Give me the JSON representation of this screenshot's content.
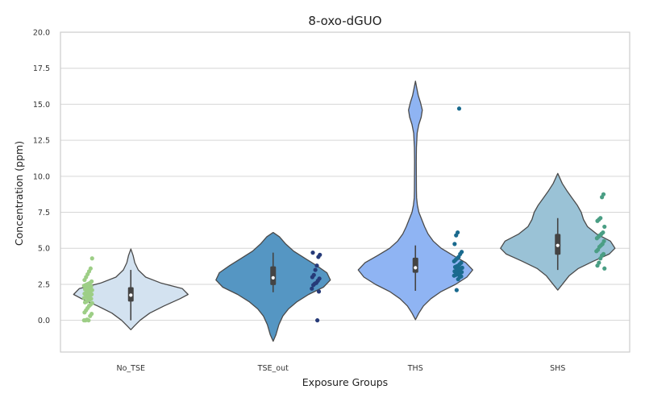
{
  "chart_data": {
    "type": "violin",
    "title": "8-oxo-dGUO",
    "xlabel": "Exposure Groups",
    "ylabel": "Concentration (ppm)",
    "ylim": [
      -2.2,
      20.0
    ],
    "yticks": [
      "0.0",
      "2.5",
      "5.0",
      "7.5",
      "10.0",
      "12.5",
      "15.0",
      "17.5",
      "20.0"
    ],
    "grid": true,
    "categories": [
      "No_TSE",
      "TSE_out",
      "THS",
      "SHS"
    ],
    "groups": [
      {
        "name": "No_TSE",
        "violin_color": "#d3e2f0",
        "point_color": "#9dce86",
        "box": {
          "q1": 1.3,
          "median": 1.75,
          "q3": 2.3,
          "whisker_low": 0.0,
          "whisker_high": 3.5
        },
        "density": [
          [
            -0.65,
            0.0
          ],
          [
            -0.4,
            0.06
          ],
          [
            0.0,
            0.16
          ],
          [
            0.5,
            0.33
          ],
          [
            1.0,
            0.58
          ],
          [
            1.5,
            0.86
          ],
          [
            1.8,
            1.0
          ],
          [
            2.2,
            0.9
          ],
          [
            2.6,
            0.52
          ],
          [
            3.0,
            0.26
          ],
          [
            3.5,
            0.13
          ],
          [
            4.0,
            0.07
          ],
          [
            4.5,
            0.04
          ],
          [
            4.95,
            0.0
          ]
        ],
        "points": [
          0.0,
          0.0,
          0.05,
          0.0,
          0.3,
          0.45,
          0.55,
          0.7,
          0.85,
          1.0,
          1.1,
          1.2,
          1.25,
          1.3,
          1.4,
          1.45,
          1.5,
          1.55,
          1.6,
          1.65,
          1.7,
          1.75,
          1.8,
          1.85,
          1.9,
          1.95,
          2.0,
          2.05,
          2.1,
          2.15,
          2.2,
          2.25,
          2.3,
          2.35,
          2.4,
          2.45,
          2.5,
          2.55,
          2.6,
          2.7,
          2.8,
          3.0,
          3.2,
          3.4,
          3.6,
          4.3
        ]
      },
      {
        "name": "TSE_out",
        "violin_color": "#5596c3",
        "point_color": "#263a78",
        "box": {
          "q1": 2.45,
          "median": 2.95,
          "q3": 3.75,
          "whisker_low": 1.95,
          "whisker_high": 4.7
        },
        "density": [
          [
            -1.45,
            0.0
          ],
          [
            -1.0,
            0.05
          ],
          [
            -0.3,
            0.1
          ],
          [
            0.3,
            0.17
          ],
          [
            0.8,
            0.27
          ],
          [
            1.3,
            0.42
          ],
          [
            1.8,
            0.62
          ],
          [
            2.3,
            0.88
          ],
          [
            2.8,
            1.0
          ],
          [
            3.3,
            0.94
          ],
          [
            3.8,
            0.76
          ],
          [
            4.3,
            0.56
          ],
          [
            4.8,
            0.36
          ],
          [
            5.3,
            0.22
          ],
          [
            5.8,
            0.11
          ],
          [
            6.1,
            0.0
          ]
        ],
        "points": [
          0.0,
          2.0,
          2.2,
          2.45,
          2.55,
          2.6,
          2.75,
          2.9,
          3.0,
          3.15,
          3.5,
          3.8,
          4.4,
          4.55,
          4.7
        ]
      },
      {
        "name": "THS",
        "violin_color": "#8fb4f3",
        "point_color": "#1a6a8e",
        "box": {
          "q1": 3.3,
          "median": 3.65,
          "q3": 4.35,
          "whisker_low": 2.05,
          "whisker_high": 5.2
        },
        "density": [
          [
            0.05,
            0.0
          ],
          [
            0.5,
            0.06
          ],
          [
            1.0,
            0.14
          ],
          [
            1.5,
            0.27
          ],
          [
            2.0,
            0.45
          ],
          [
            2.5,
            0.7
          ],
          [
            3.0,
            0.9
          ],
          [
            3.5,
            1.0
          ],
          [
            4.0,
            0.88
          ],
          [
            4.5,
            0.66
          ],
          [
            5.0,
            0.45
          ],
          [
            5.5,
            0.31
          ],
          [
            6.0,
            0.22
          ],
          [
            6.5,
            0.16
          ],
          [
            7.0,
            0.11
          ],
          [
            7.5,
            0.06
          ],
          [
            8.0,
            0.035
          ],
          [
            8.5,
            0.02
          ],
          [
            9.0,
            0.018
          ],
          [
            10.0,
            0.016
          ],
          [
            11.0,
            0.015
          ],
          [
            12.0,
            0.018
          ],
          [
            13.0,
            0.03
          ],
          [
            13.6,
            0.06
          ],
          [
            14.1,
            0.1
          ],
          [
            14.6,
            0.12
          ],
          [
            15.1,
            0.09
          ],
          [
            15.6,
            0.05
          ],
          [
            16.1,
            0.025
          ],
          [
            16.6,
            0.0
          ]
        ],
        "points": [
          2.1,
          2.85,
          3.0,
          3.05,
          3.1,
          3.15,
          3.2,
          3.25,
          3.3,
          3.35,
          3.4,
          3.45,
          3.5,
          3.55,
          3.6,
          3.65,
          3.7,
          3.75,
          3.8,
          3.9,
          4.0,
          4.1,
          4.2,
          4.3,
          4.4,
          4.6,
          4.75,
          5.3,
          5.9,
          6.1,
          14.7
        ]
      },
      {
        "name": "SHS",
        "violin_color": "#9ac2d6",
        "point_color": "#4a9e84",
        "box": {
          "q1": 4.55,
          "median": 5.2,
          "q3": 6.0,
          "whisker_low": 3.5,
          "whisker_high": 7.1
        },
        "density": [
          [
            2.1,
            0.0
          ],
          [
            2.6,
            0.1
          ],
          [
            3.1,
            0.2
          ],
          [
            3.6,
            0.36
          ],
          [
            4.1,
            0.62
          ],
          [
            4.6,
            0.9
          ],
          [
            5.0,
            1.0
          ],
          [
            5.5,
            0.92
          ],
          [
            6.0,
            0.68
          ],
          [
            6.5,
            0.52
          ],
          [
            7.0,
            0.45
          ],
          [
            7.5,
            0.41
          ],
          [
            8.0,
            0.34
          ],
          [
            8.5,
            0.25
          ],
          [
            9.0,
            0.16
          ],
          [
            9.5,
            0.08
          ],
          [
            10.2,
            0.0
          ]
        ],
        "points": [
          3.6,
          3.8,
          4.0,
          4.3,
          4.5,
          4.6,
          4.8,
          4.9,
          5.1,
          5.2,
          5.3,
          5.5,
          5.7,
          5.8,
          5.9,
          6.0,
          6.1,
          6.5,
          6.9,
          7.0,
          7.1,
          8.55,
          8.75
        ]
      }
    ]
  }
}
